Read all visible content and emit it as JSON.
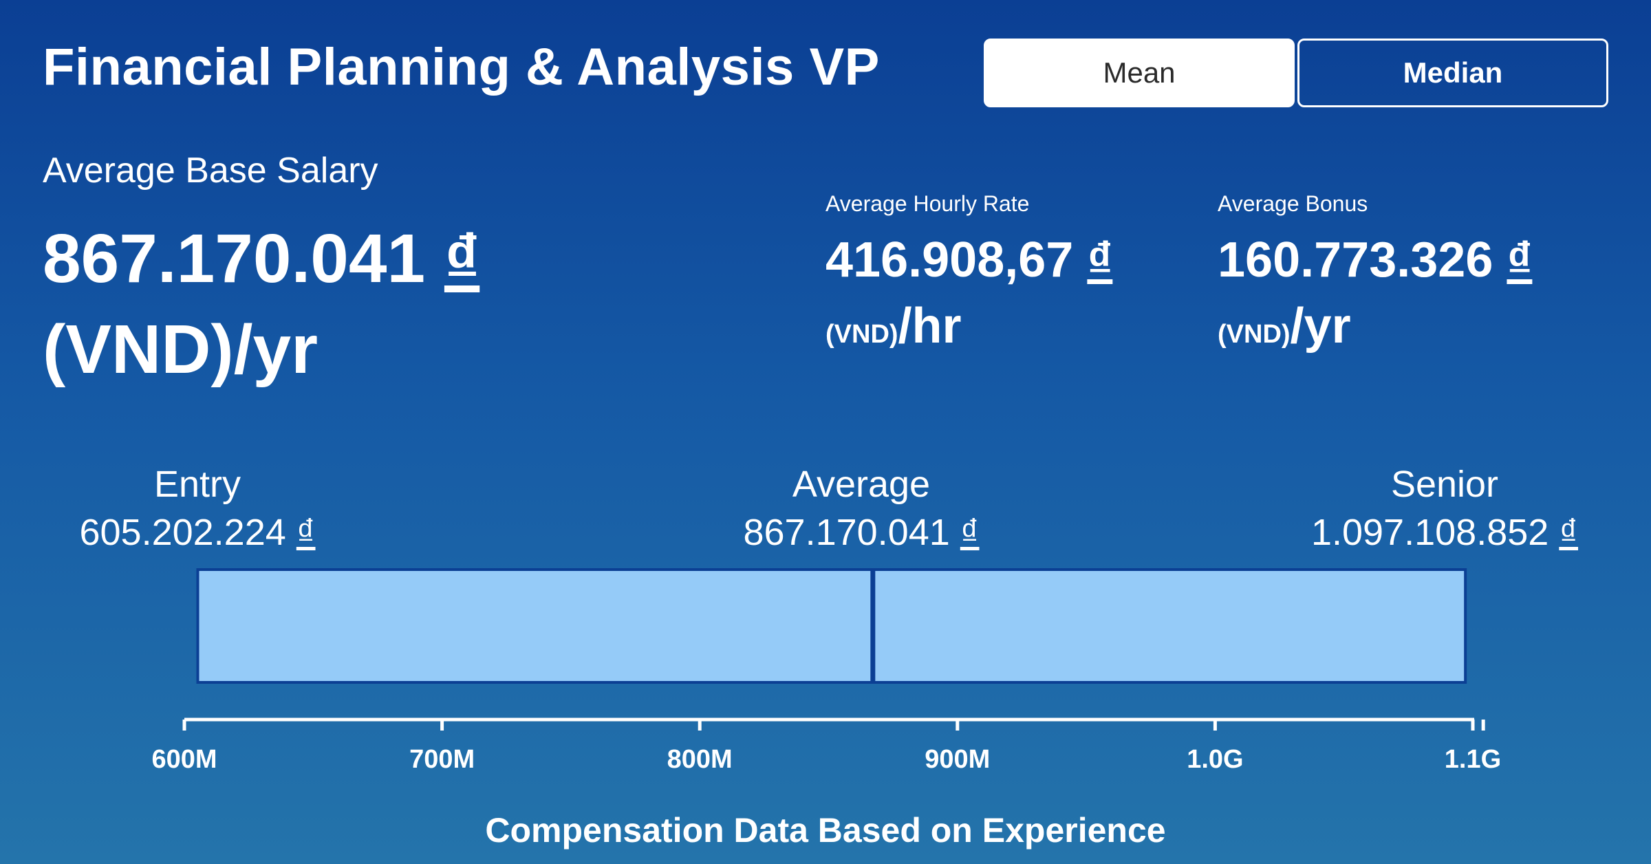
{
  "header": {
    "title": "Financial Planning & Analysis VP",
    "toggle_mean": "Mean",
    "toggle_median": "Median",
    "selected": "Mean"
  },
  "salary": {
    "label": "Average Base Salary",
    "value": "867.170.041",
    "currency": "₫",
    "unit": "(VND)/yr"
  },
  "hourly": {
    "label": "Average Hourly Rate",
    "value": "416.908,67",
    "currency": "₫",
    "unit_small": "(VND)",
    "unit": "/hr"
  },
  "bonus": {
    "label": "Average Bonus",
    "value": "160.773.326",
    "currency": "₫",
    "unit_small": "(VND)",
    "unit": "/yr"
  },
  "range": {
    "entry_label": "Entry",
    "entry_value": "605.202.224",
    "average_label": "Average",
    "average_value": "867.170.041",
    "senior_label": "Senior",
    "senior_value": "1.097.108.852",
    "currency": "₫"
  },
  "caption": "Compensation Data Based on Experience",
  "chart_data": {
    "type": "bar",
    "orientation": "horizontal-range",
    "title": "Compensation Data Based on Experience",
    "min": 605202224,
    "avg": 867170041,
    "max": 1097108852,
    "xlim": [
      600000000,
      1110000000
    ],
    "ticks": [
      600000000,
      700000000,
      800000000,
      900000000,
      1000000000,
      1100000000
    ],
    "tick_labels": [
      "600M",
      "700M",
      "800M",
      "900M",
      "1.0G",
      "1.1G"
    ],
    "colors": {
      "bar": "#95cbf8",
      "edge": "#0b3f94",
      "axis": "#ffffff"
    }
  }
}
